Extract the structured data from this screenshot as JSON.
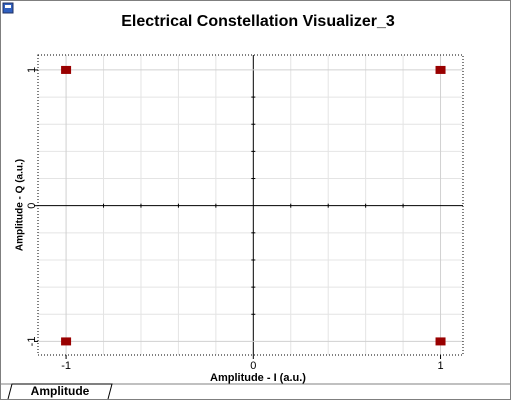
{
  "chart_data": {
    "type": "scatter",
    "title": "Electrical Constellation Visualizer_3",
    "x_label": "Amplitude - I (a.u.)",
    "y_label": "Amplitude - Q (a.u.)",
    "x": [
      -1,
      1,
      -1,
      1
    ],
    "values": [
      1,
      1,
      -1,
      -1
    ],
    "color": "#990000",
    "xlim": [
      -1.15,
      1.12
    ],
    "ylim": [
      -1.1,
      1.11
    ],
    "xticks": [
      -1,
      0,
      1
    ],
    "yticks": [
      -1,
      0,
      1
    ],
    "x_minor_ticks": [
      -0.8,
      -0.6,
      -0.4,
      -0.2,
      0.2,
      0.4,
      0.6,
      0.8
    ],
    "y_minor_ticks": [
      -0.8,
      -0.6,
      -0.4,
      -0.2,
      0.2,
      0.4,
      0.6,
      0.8
    ],
    "grid": true
  },
  "tab": "Amplitude"
}
